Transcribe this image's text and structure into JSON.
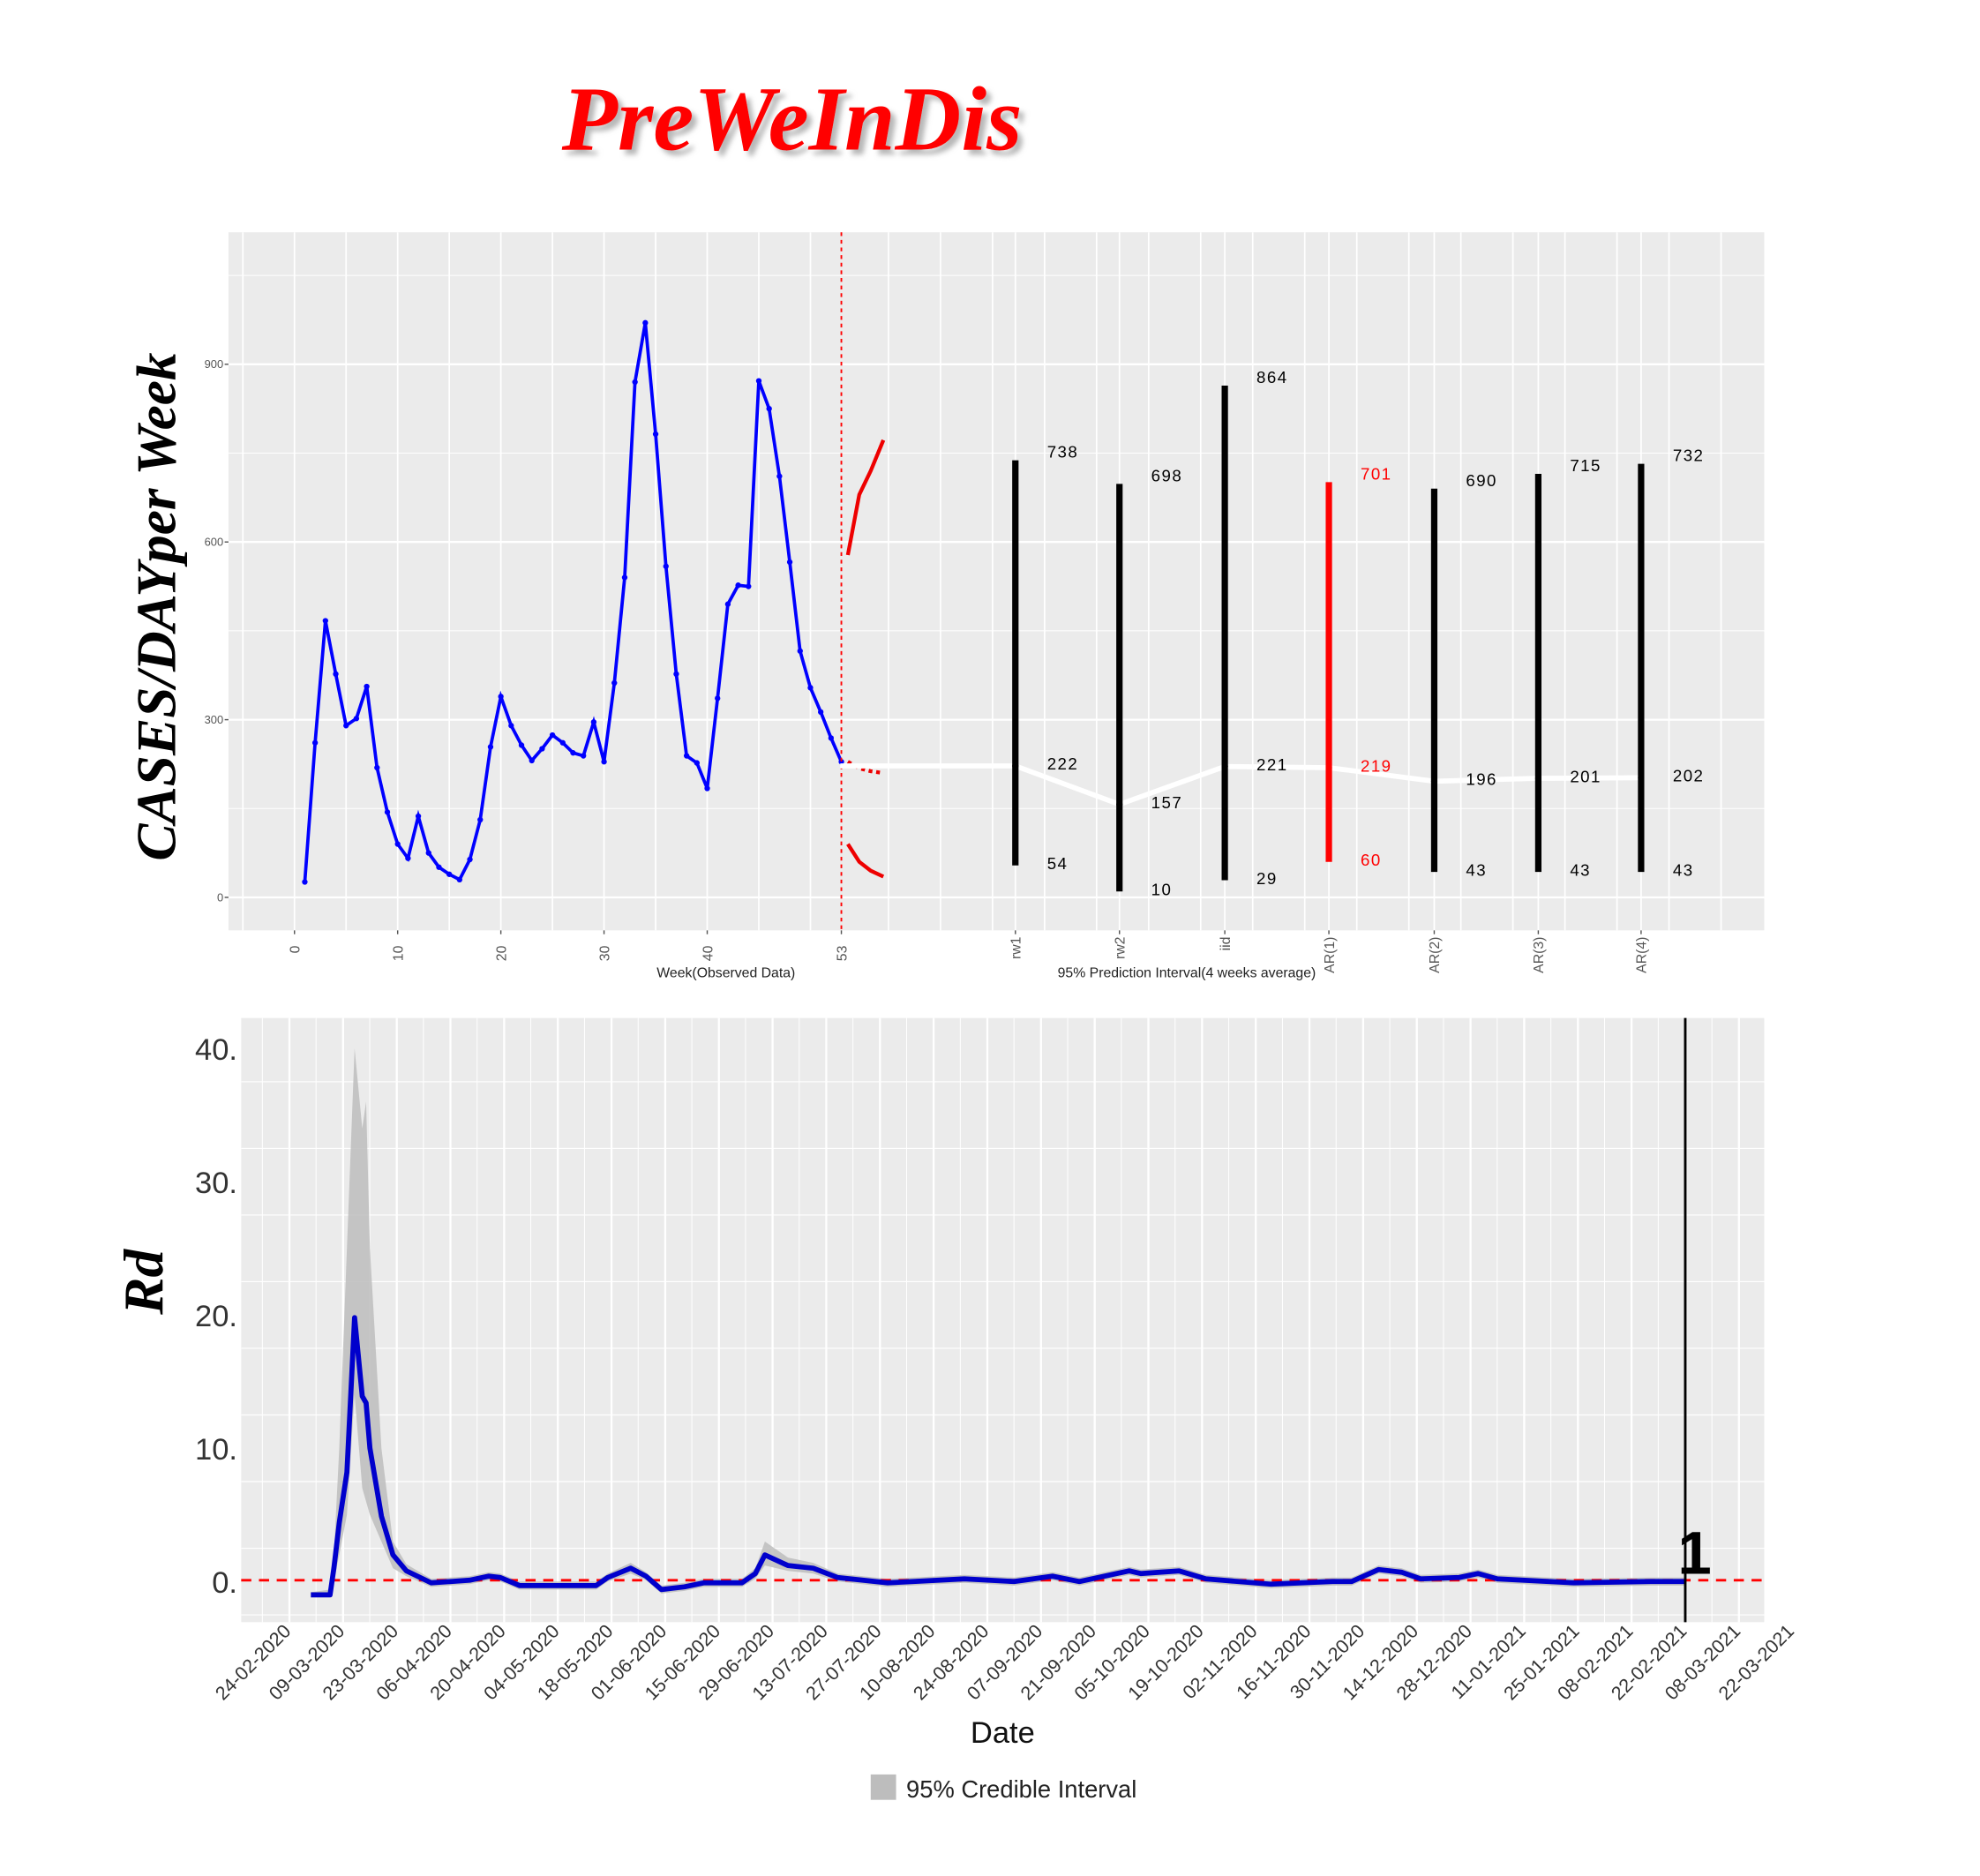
{
  "title": "PreWeInDis",
  "colors": {
    "title": "#ff0000",
    "observed": "#0000ff",
    "interval": "#000000",
    "interval_highlight": "#ff0000",
    "panel": "#ebebeb",
    "grid": "#ffffff",
    "rd_line": "#0000cc",
    "ci": "#bdbdbd",
    "reference": "#ff0000"
  },
  "chart_data": [
    {
      "type": "line",
      "ylabel_main": "CASES/DAY",
      "ylabel_sub": "per Week",
      "xlabel_observed": "Week(Observed Data)",
      "xlabel_prediction": "95% Prediction Interval(4 weeks average)",
      "y_ticks": [
        {
          "value": 0,
          "label": "0"
        },
        {
          "value": 300,
          "label": "300"
        },
        {
          "value": 600,
          "label": "600"
        },
        {
          "value": 900,
          "label": "900"
        }
      ],
      "ylim": [
        -50,
        1130
      ],
      "x_ticks": [
        {
          "value": 0,
          "label": "0"
        },
        {
          "value": 10,
          "label": "10"
        },
        {
          "value": 20,
          "label": "20"
        },
        {
          "value": 30,
          "label": "30"
        },
        {
          "value": 40,
          "label": "40"
        },
        {
          "value": 53,
          "label": "53"
        }
      ],
      "observed": {
        "weeks": [
          1,
          2,
          3,
          4,
          5,
          6,
          7,
          8,
          9,
          10,
          11,
          12,
          13,
          14,
          15,
          16,
          17,
          18,
          19,
          20,
          21,
          22,
          23,
          24,
          25,
          26,
          27,
          28,
          29,
          30,
          31,
          32,
          33,
          34,
          35,
          36,
          37,
          38,
          39,
          40,
          41,
          42,
          43,
          44,
          45,
          46,
          47,
          48,
          49,
          50,
          51,
          52,
          53
        ],
        "values": [
          26,
          261,
          467,
          377,
          290,
          302,
          356,
          219,
          144,
          90,
          66,
          137,
          75,
          51,
          39,
          30,
          64,
          131,
          254,
          339,
          290,
          257,
          231,
          251,
          274,
          261,
          244,
          239,
          296,
          229,
          362,
          540,
          870,
          970,
          782,
          559,
          377,
          239,
          227,
          184,
          336,
          495,
          527,
          525,
          872,
          825,
          711,
          566,
          416,
          354,
          313,
          269,
          229
        ]
      },
      "forecast_mean": [
        229,
        218,
        213,
        210
      ],
      "forecast_upper": [
        578,
        680,
        720,
        772
      ],
      "forecast_lower": [
        90,
        60,
        45,
        35
      ],
      "vline_week": 53,
      "prediction_intervals": [
        {
          "model": "rw1",
          "low": 54,
          "mid": 222,
          "high": 738,
          "highlight": false
        },
        {
          "model": "rw2",
          "low": 10,
          "mid": 157,
          "high": 698,
          "highlight": false
        },
        {
          "model": "iid",
          "low": 29,
          "mid": 221,
          "high": 864,
          "highlight": false
        },
        {
          "model": "AR(1)",
          "low": 60,
          "mid": 219,
          "high": 701,
          "highlight": true
        },
        {
          "model": "AR(2)",
          "low": 43,
          "mid": 196,
          "high": 690,
          "highlight": false
        },
        {
          "model": "AR(3)",
          "low": 43,
          "mid": 201,
          "high": 715,
          "highlight": false
        },
        {
          "model": "AR(4)",
          "low": 43,
          "mid": 202,
          "high": 732,
          "highlight": false
        }
      ]
    },
    {
      "type": "area",
      "ylabel": "Rd",
      "xlabel": "Date",
      "legend": {
        "label": "95% Credible Interval",
        "position": "bottom"
      },
      "y_ticks": [
        {
          "value": 0,
          "label": "0."
        },
        {
          "value": 10,
          "label": "10."
        },
        {
          "value": 20,
          "label": "20."
        },
        {
          "value": 30,
          "label": "30."
        },
        {
          "value": 40,
          "label": "40."
        }
      ],
      "ylim": [
        -3,
        42
      ],
      "x_tick_labels": [
        "24-02-2020",
        "09-03-2020",
        "23-03-2020",
        "06-04-2020",
        "20-04-2020",
        "04-05-2020",
        "18-05-2020",
        "01-06-2020",
        "15-06-2020",
        "29-06-2020",
        "13-07-2020",
        "27-07-2020",
        "10-08-2020",
        "24-08-2020",
        "07-09-2020",
        "21-09-2020",
        "05-10-2020",
        "19-10-2020",
        "02-11-2020",
        "16-11-2020",
        "30-11-2020",
        "14-12-2020",
        "28-12-2020",
        "11-01-2021",
        "25-01-2021",
        "08-02-2021",
        "22-02-2021",
        "08-03-2021",
        "22-03-2021"
      ],
      "x_tick_step_days": 14,
      "series": {
        "days": [
          5.6,
          10.6,
          11.6,
          13,
          15,
          17,
          19,
          20,
          21,
          24,
          27,
          30.5,
          37,
          47,
          52,
          55,
          60,
          73.5,
          80,
          83,
          89,
          93,
          97,
          103,
          108,
          118,
          121.5,
          124,
          130,
          136.6,
          143,
          156,
          176,
          189,
          199,
          206,
          219,
          222,
          232,
          239,
          256,
          272,
          277,
          284,
          290,
          295,
          305,
          310,
          315,
          335,
          355,
          364
        ],
        "rd": [
          -1,
          -1,
          1,
          4.4,
          8.2,
          19.8,
          13.9,
          13.4,
          10,
          4.9,
          2,
          0.8,
          -0.1,
          0.1,
          0.4,
          0.3,
          -0.3,
          -0.3,
          -0.3,
          0.3,
          1,
          0.4,
          -0.6,
          -0.4,
          -0.1,
          -0.1,
          0.6,
          2,
          1.2,
          1,
          0.3,
          -0.1,
          0.2,
          0,
          0.4,
          0,
          0.8,
          0.6,
          0.8,
          0.2,
          -0.2,
          0,
          0,
          0.9,
          0.7,
          0.2,
          0.3,
          0.6,
          0.2,
          -0.1,
          0,
          0
        ],
        "ci_upper": [
          -0.8,
          -0.6,
          2,
          10,
          25,
          40,
          34,
          36,
          25,
          10,
          3,
          1.3,
          0.2,
          0.4,
          0.7,
          0.6,
          0,
          0,
          0,
          0.6,
          1.4,
          0.7,
          -0.3,
          -0.1,
          0.2,
          0.2,
          1,
          3,
          1.8,
          1.4,
          0.6,
          0.2,
          0.5,
          0.3,
          0.7,
          0.3,
          1.1,
          0.9,
          1.1,
          0.5,
          0.1,
          0.3,
          0.3,
          1.2,
          1,
          0.5,
          0.6,
          0.9,
          0.5,
          0.2,
          0.3,
          0.3
        ],
        "ci_lower": [
          -1.2,
          -1.2,
          0,
          2,
          5,
          14,
          7,
          6,
          5,
          3,
          1,
          0.4,
          -0.4,
          -0.2,
          0.1,
          0,
          -0.6,
          -0.6,
          -0.6,
          0,
          0.6,
          0.1,
          -0.9,
          -0.7,
          -0.4,
          -0.4,
          0.2,
          1.2,
          0.8,
          0.6,
          0,
          -0.4,
          -0.1,
          -0.3,
          0.1,
          -0.3,
          0.5,
          0.3,
          0.5,
          -0.1,
          -0.5,
          -0.3,
          -0.3,
          0.6,
          0.4,
          -0.1,
          0,
          0.3,
          -0.1,
          -0.4,
          -0.3,
          -0.3
        ]
      },
      "reference_value": 0.1,
      "vline_day": 364,
      "annotation": "1"
    }
  ]
}
